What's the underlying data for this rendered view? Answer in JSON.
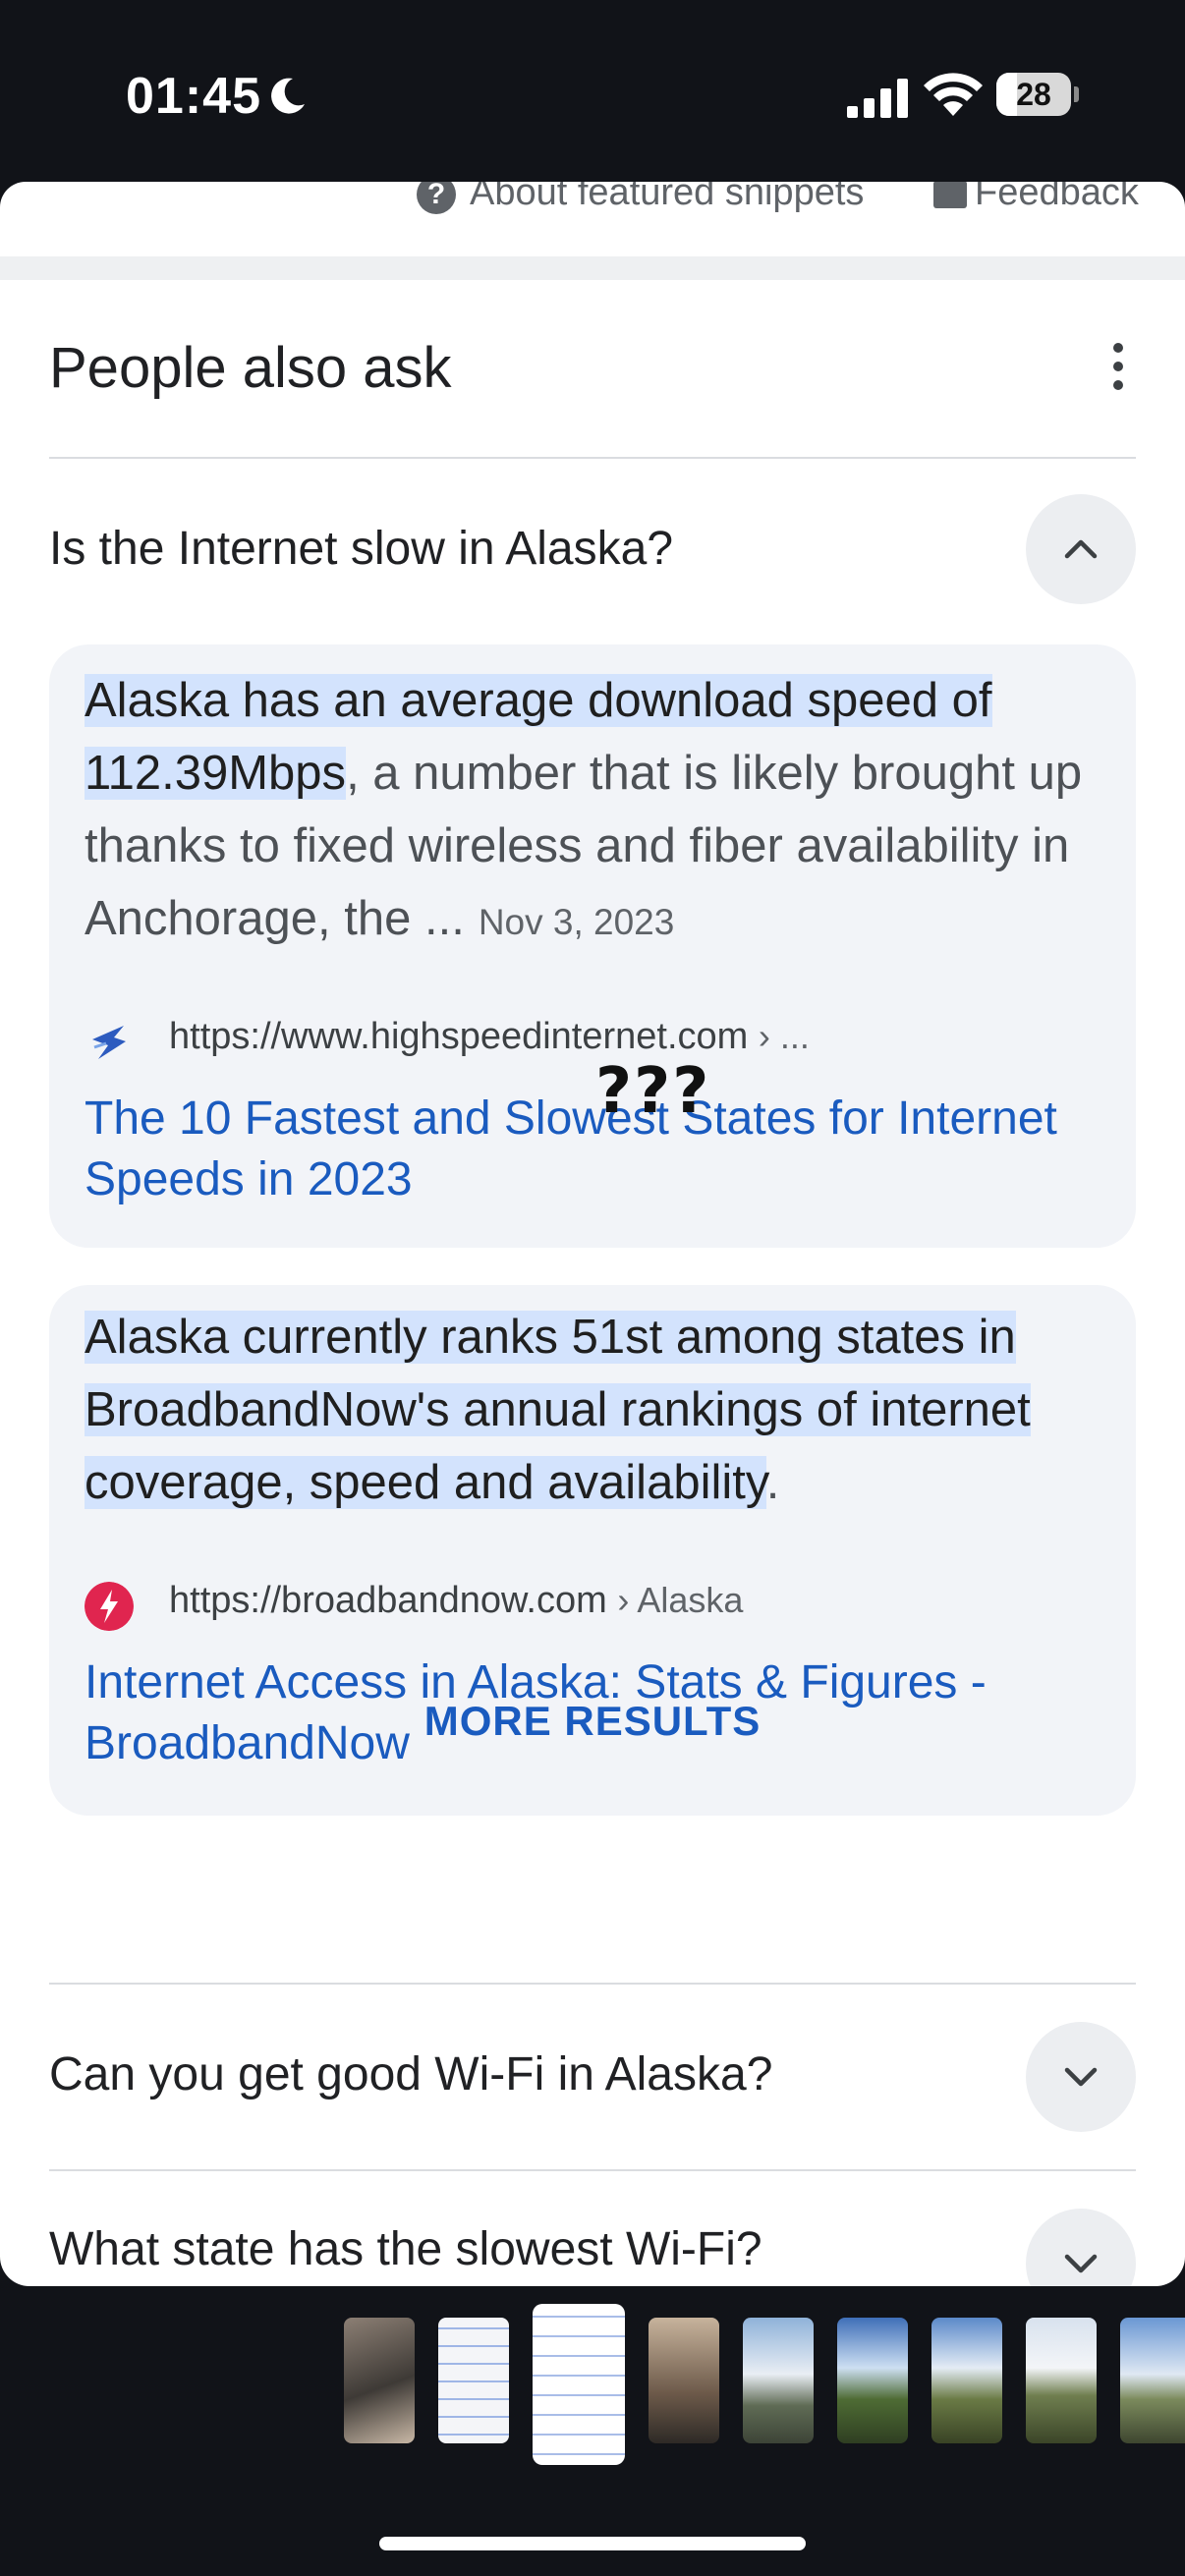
{
  "status_bar": {
    "time": "01:45",
    "battery_level": "28",
    "icons": [
      "moon-icon",
      "cellular-signal-icon",
      "wifi-icon",
      "battery-icon"
    ]
  },
  "previous_section": {
    "about_label": "About featured snippets",
    "feedback_label": "Feedback"
  },
  "paa": {
    "title": "People also ask",
    "more_results_label": "MORE RESULTS",
    "questions": [
      {
        "text": "Is the Internet slow in Alaska?",
        "expanded": true
      },
      {
        "text": "Can you get good Wi-Fi in Alaska?",
        "expanded": false
      },
      {
        "text": "What state has the slowest Wi-Fi?",
        "expanded": false
      }
    ],
    "answers": [
      {
        "highlight": "Alaska has an average download speed of 112.39Mbps",
        "rest": ", a number that is likely brought up thanks to fixed wireless and fiber availability in Anchorage, the ...",
        "date": "Nov 3, 2023",
        "source_url": "https://www.highspeedinternet.com",
        "source_crumb": "› ...",
        "link_title": "The 10 Fastest and Slowest States for Internet Speeds in 2023"
      },
      {
        "highlight": "Alaska currently ranks 51st among states in BroadbandNow's annual rankings of internet coverage, speed and availability",
        "rest": ".",
        "source_url": "https://broadbandnow.com",
        "source_crumb": "› Alaska",
        "link_title": "Internet Access in Alaska: Stats & Figures - BroadbandNow"
      }
    ]
  },
  "annotation": "???",
  "colors": {
    "link": "#1a5bbf",
    "highlight": "#d3e3fd",
    "card_bg": "#f2f4f8",
    "frame_bg": "#111318"
  }
}
